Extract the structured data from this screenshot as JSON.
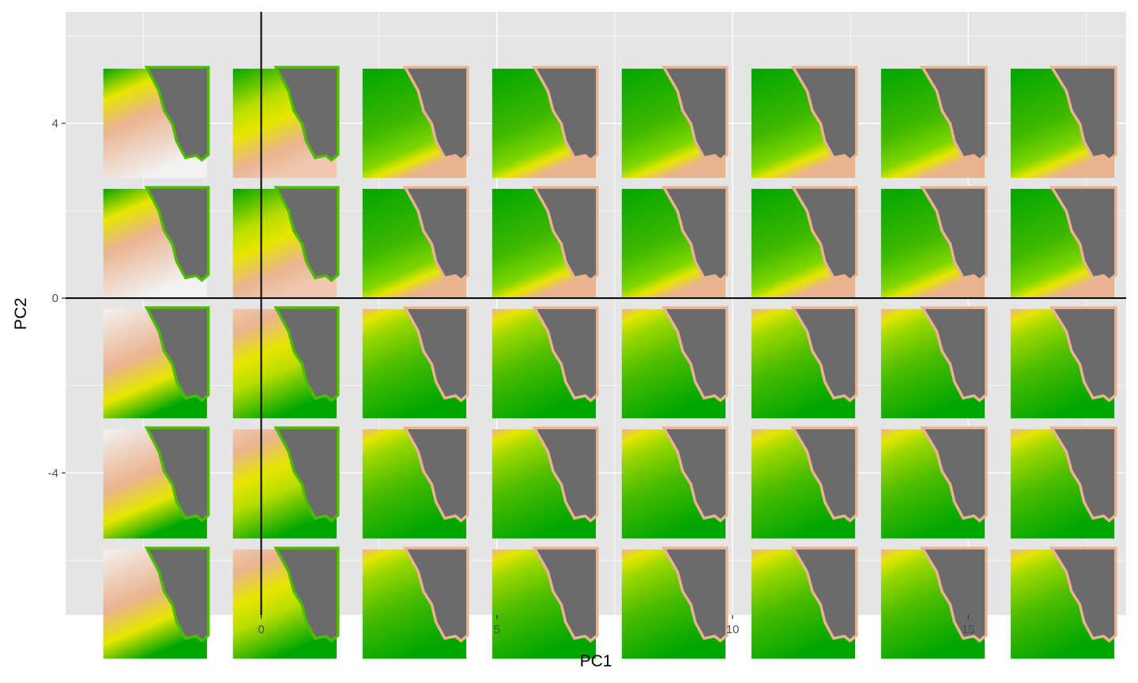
{
  "chart_data": {
    "type": "scatter",
    "title": "",
    "xlabel": "PC1",
    "ylabel": "PC2",
    "xlim": [
      -4.15,
      18.35
    ],
    "ylim": [
      -7.25,
      6.55
    ],
    "x_ticks": [
      0,
      5,
      10,
      15
    ],
    "x_tick_labels": [
      "0",
      "5",
      "10",
      "15"
    ],
    "y_ticks": [
      4,
      0,
      -4
    ],
    "y_tick_labels": [
      "4",
      "0",
      "-4"
    ],
    "grid": true,
    "reference_lines": {
      "x": 0,
      "y": 0
    },
    "marker": "raster map thumbnail",
    "columns_x": [
      -2.25,
      0.5,
      3.25,
      6.0,
      8.75,
      11.5,
      14.25,
      17.0
    ],
    "rows_y": [
      4.0,
      1.25,
      -1.5,
      -4.25,
      -7.0
    ],
    "tile_size": [
      2.2,
      2.5
    ],
    "colors": {
      "panel_background": "#e5e5e5",
      "grid": "#ffffff",
      "reference_line": "#000000",
      "land_masked": "#6b6b6b",
      "scale_low": "#00a600",
      "scale_mid": "#e6e600",
      "scale_high": "#eab38f",
      "scale_top": "#f2f2f2"
    }
  }
}
